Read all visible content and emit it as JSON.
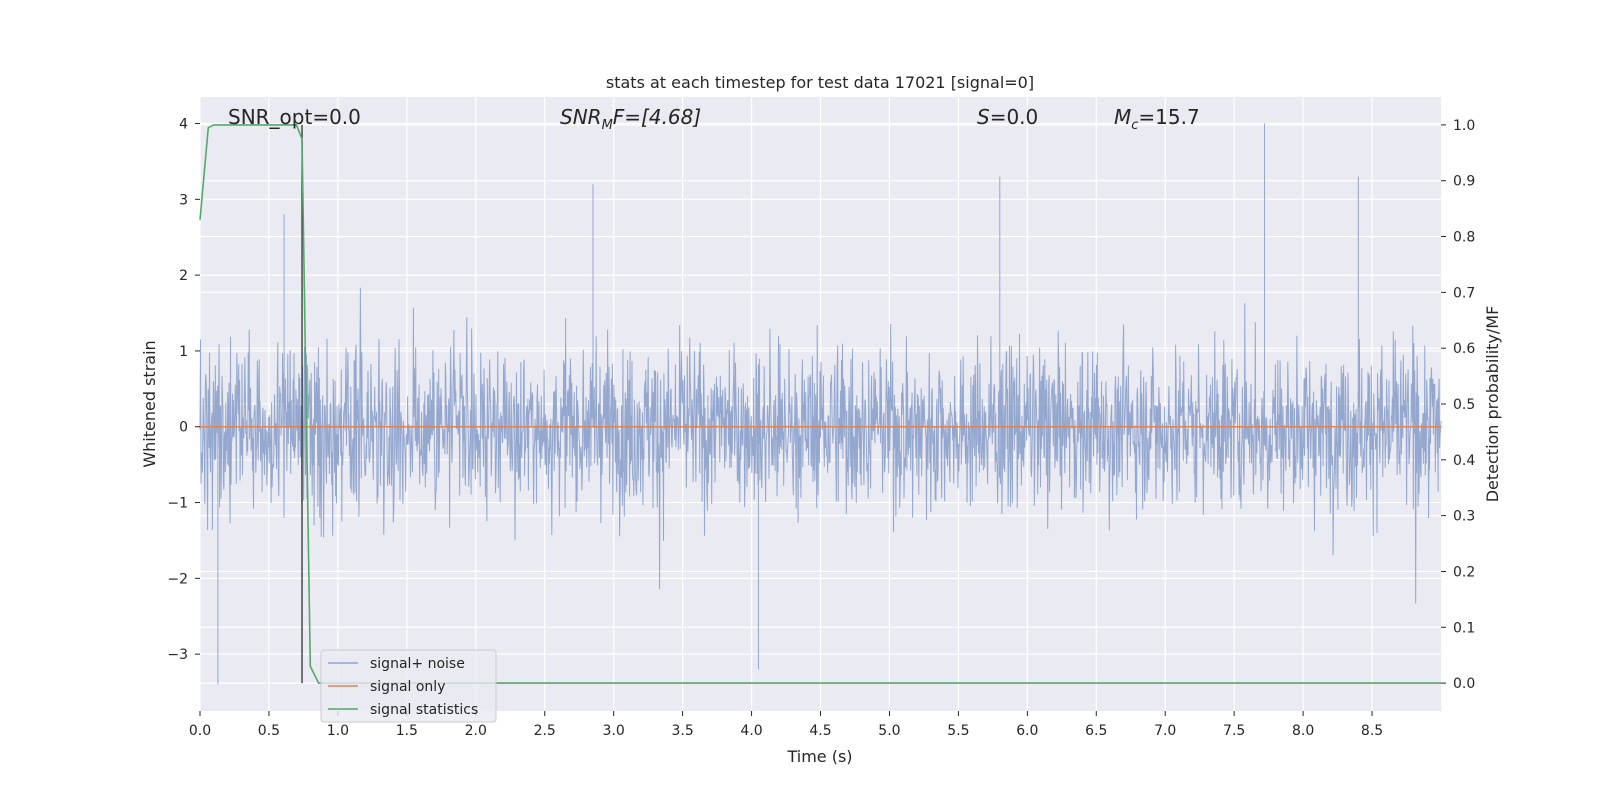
{
  "chart_data": {
    "type": "line",
    "title": "stats at each timestep for test data 17021 [signal=0]",
    "xlabel": "Time (s)",
    "ylabel_left": "Whitened strain",
    "ylabel_right": "Detection probability/MF",
    "xlim": [
      0.0,
      9.0
    ],
    "ylim_left": [
      -3.75,
      4.35
    ],
    "ylim_right": [
      -0.05,
      1.05
    ],
    "xticks": [
      "0.0",
      "0.5",
      "1.0",
      "1.5",
      "2.0",
      "2.5",
      "3.0",
      "3.5",
      "4.0",
      "4.5",
      "5.0",
      "5.5",
      "6.0",
      "6.5",
      "7.0",
      "7.5",
      "8.0",
      "8.5"
    ],
    "yticks_left": [
      "4",
      "3",
      "2",
      "1",
      "0",
      "−1",
      "−2",
      "−3"
    ],
    "yticks_right": [
      "1.0",
      "0.9",
      "0.8",
      "0.7",
      "0.6",
      "0.5",
      "0.4",
      "0.3",
      "0.2",
      "0.1",
      "0.0"
    ],
    "grid": true,
    "legend_placement": "lower-left",
    "annotations": {
      "snr_opt": "SNR_opt=0.0",
      "snr_mf_main": "SNR",
      "snr_mf_sub": "M",
      "snr_mf_rest": "F=[4.68]",
      "s_main": "S",
      "s_rest": "=0.0",
      "mc_main": "M",
      "mc_sub": "c",
      "mc_rest": "=15.7"
    },
    "vertical_marker_x": 0.74,
    "series": [
      {
        "name": "signal+ noise",
        "color": "#8fa3cc",
        "axis": "left",
        "sample_rate_hz": 2048,
        "noise_envelope": {
          "typical_abs": 1.8,
          "max_peaks": [
            {
              "x": 0.13,
              "y": -3.4
            },
            {
              "x": 0.61,
              "y": 2.8
            },
            {
              "x": 2.85,
              "y": 3.2
            },
            {
              "x": 4.05,
              "y": -3.2
            },
            {
              "x": 5.8,
              "y": 3.3
            },
            {
              "x": 7.72,
              "y": 4.0
            },
            {
              "x": 8.4,
              "y": 3.3
            }
          ]
        }
      },
      {
        "name": "signal only",
        "color": "#dd8452",
        "axis": "left",
        "x": [
          0.0,
          9.0
        ],
        "y": [
          0.0,
          0.0
        ]
      },
      {
        "name": "signal statistics",
        "color": "#55a868",
        "axis": "right",
        "x": [
          0.0,
          0.06,
          0.1,
          0.2,
          0.4,
          0.6,
          0.7,
          0.74,
          0.8,
          0.86,
          0.9,
          9.0
        ],
        "y": [
          0.83,
          0.995,
          1.0,
          1.0,
          1.0,
          1.0,
          1.0,
          0.975,
          0.03,
          0.0,
          0.0,
          0.0
        ]
      }
    ],
    "colors": {
      "plot_bg": "#eaeaf2",
      "grid": "#ffffff",
      "marker": "#333333"
    }
  }
}
